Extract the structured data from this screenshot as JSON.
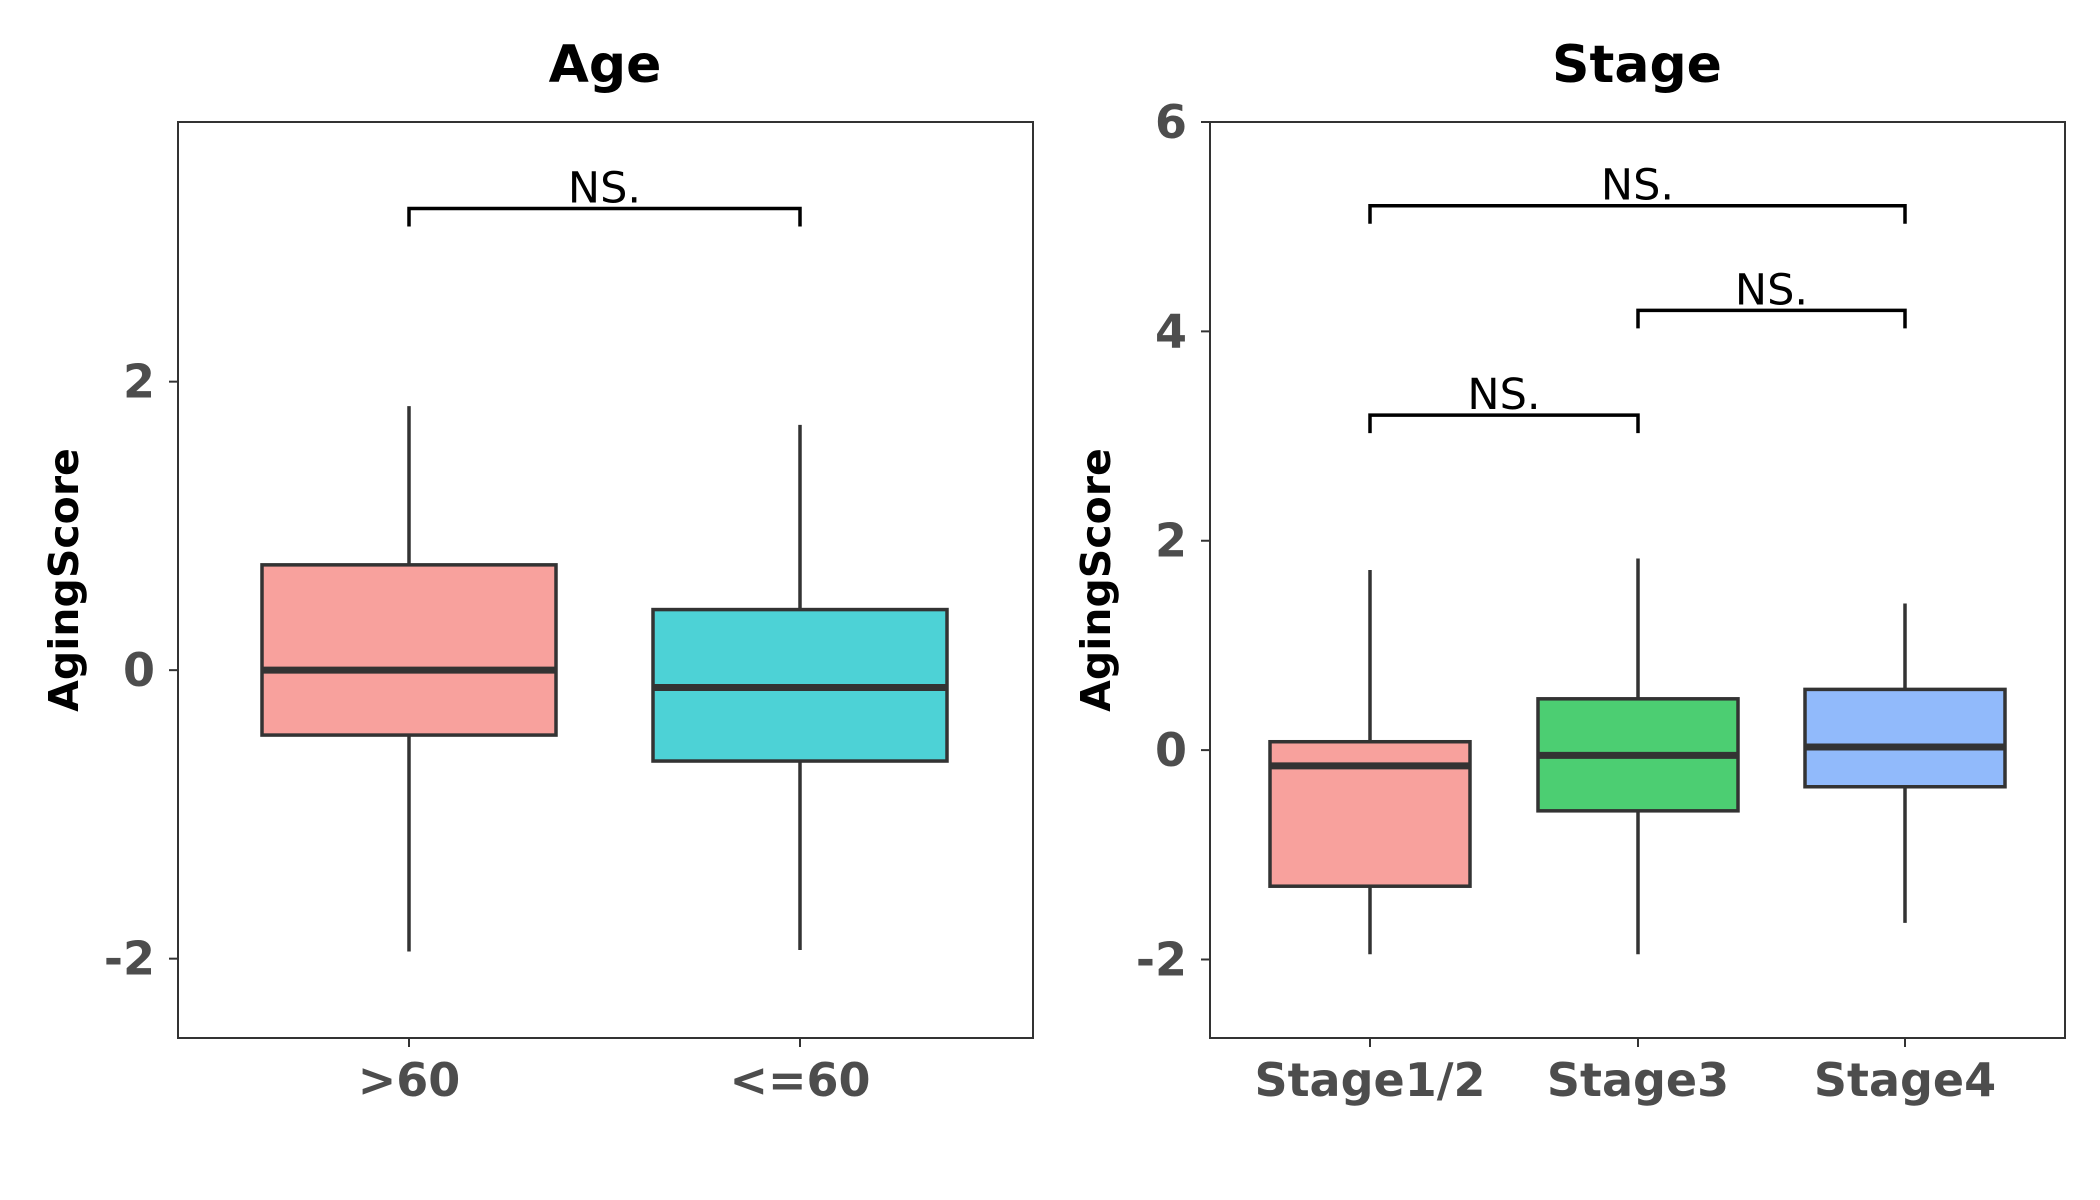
{
  "chart_data": [
    {
      "type": "box",
      "title": "Age",
      "xlabel": "",
      "ylabel": "AgingScore",
      "ylim": [
        -2.55,
        3.8
      ],
      "yticks": [
        -2,
        0,
        2
      ],
      "ytick_labels": [
        "-2",
        "0",
        "2"
      ],
      "grid": false,
      "categories": [
        ">60",
        "<=60"
      ],
      "boxes": [
        {
          "category": ">60",
          "whisker_low": -1.95,
          "q1": -0.45,
          "median": 0.0,
          "q3": 0.73,
          "whisker_high": 1.83,
          "color": "#F8A19D"
        },
        {
          "category": "<=60",
          "whisker_low": -1.94,
          "q1": -0.63,
          "median": -0.12,
          "q3": 0.42,
          "whisker_high": 1.7,
          "color": "#4DD2D6"
        }
      ],
      "comparisons": [
        {
          "from": ">60",
          "to": "<=60",
          "y": 3.2,
          "label": "NS."
        }
      ]
    },
    {
      "type": "box",
      "title": "Stage",
      "xlabel": "",
      "ylabel": "AgingScore",
      "ylim": [
        -2.75,
        6.0
      ],
      "yticks": [
        -2,
        0,
        2,
        4,
        6
      ],
      "ytick_labels": [
        "-2",
        "0",
        "2",
        "4",
        "6"
      ],
      "grid": false,
      "categories": [
        "Stage1/2",
        "Stage3",
        "Stage4"
      ],
      "boxes": [
        {
          "category": "Stage1/2",
          "whisker_low": -1.95,
          "q1": -1.3,
          "median": -0.15,
          "q3": 0.08,
          "whisker_high": 1.72,
          "color": "#F8A19D"
        },
        {
          "category": "Stage3",
          "whisker_low": -1.95,
          "q1": -0.58,
          "median": -0.05,
          "q3": 0.49,
          "whisker_high": 1.83,
          "color": "#4CCE72"
        },
        {
          "category": "Stage4",
          "whisker_low": -1.65,
          "q1": -0.35,
          "median": 0.03,
          "q3": 0.58,
          "whisker_high": 1.4,
          "color": "#91BAFB"
        }
      ],
      "comparisons": [
        {
          "from": "Stage1/2",
          "to": "Stage3",
          "y": 3.2,
          "label": "NS."
        },
        {
          "from": "Stage3",
          "to": "Stage4",
          "y": 4.2,
          "label": "NS."
        },
        {
          "from": "Stage1/2",
          "to": "Stage4",
          "y": 5.2,
          "label": "NS."
        }
      ]
    }
  ],
  "style": {
    "box_stroke": "#333333",
    "panel_border": "#333333",
    "tick_label_color": "#4d4d4d",
    "text_color": "#000000"
  }
}
